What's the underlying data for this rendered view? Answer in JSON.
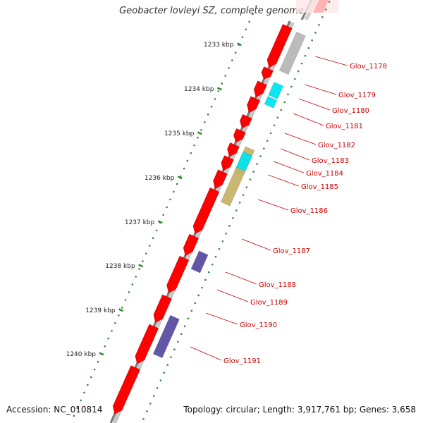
{
  "title": "Geobacter lovleyi SZ, complete genome",
  "footer": {
    "accession": "Accession: NC_010814",
    "summary": "Topology: circular; Length: 3,917,761 bp; Genes: 3,658"
  },
  "colors": {
    "cds": "#ff0000",
    "backbone": "#808080",
    "tick": "#2e8b2e",
    "label": "#cc0000",
    "cog_gray": "#b8b8b8",
    "cog_cyan": "#00e5ee",
    "cog_blue": "#5a4fa3",
    "cog_khaki": "#c8b56a"
  },
  "ticks": [
    "1233 kbp",
    "1234 kbp",
    "1235 kbp",
    "1236 kbp",
    "1237 kbp",
    "1238 kbp",
    "1239 kbp",
    "1240 kbp"
  ],
  "genes": [
    {
      "label": "Glov_1178",
      "cog": "cog_gray"
    },
    {
      "label": "Glov_1179",
      "cog": "cog_cyan"
    },
    {
      "label": "Glov_1180",
      "cog": "cog_cyan"
    },
    {
      "label": "Glov_1181",
      "cog": null
    },
    {
      "label": "Glov_1182",
      "cog": null
    },
    {
      "label": "Glov_1183",
      "cog": "cog_khaki"
    },
    {
      "label": "Glov_1184",
      "cog": "cog_cyan"
    },
    {
      "label": "Glov_1185",
      "cog": null
    },
    {
      "label": "Glov_1186",
      "cog": "cog_khaki"
    },
    {
      "label": "Glov_1187",
      "cog": null
    },
    {
      "label": "Glov_1188",
      "cog": "cog_blue"
    },
    {
      "label": "Glov_1189",
      "cog": null
    },
    {
      "label": "Glov_1190",
      "cog": null
    },
    {
      "label": "Glov_1191",
      "cog": "cog_blue"
    }
  ]
}
